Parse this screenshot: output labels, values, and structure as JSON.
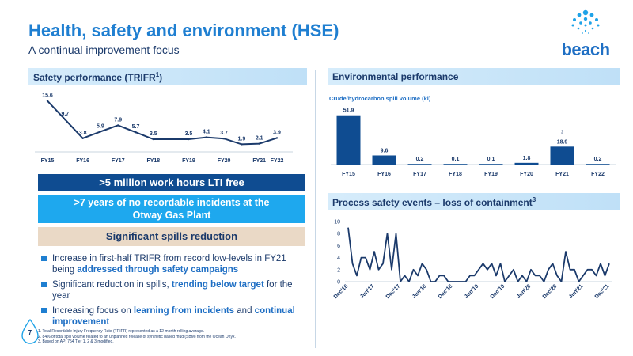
{
  "header": {
    "title": "Health, safety and environment (HSE)",
    "subtitle": "A continual improvement focus",
    "logo_text": "beach"
  },
  "page_number": "7",
  "sections": {
    "safety": "Safety performance (TRIFR",
    "safety_sup": "1",
    "safety_close": ")",
    "environmental": "Environmental performance",
    "process": "Process safety events – loss of containment",
    "process_sup": "3"
  },
  "banners": {
    "lti": ">5 million work hours LTI free",
    "otway_line1": ">7 years of no recordable incidents at the",
    "otway_line2": "Otway Gas Plant",
    "spills": "Significant spills reduction"
  },
  "bullets": [
    {
      "pre": "Increase in first-half TRIFR from record low-levels in FY21 being ",
      "bold": "addressed through safety campaigns",
      "mid": "",
      "bold2": "",
      "post": ""
    },
    {
      "pre": "Significant reduction in spills, ",
      "bold": "trending below target",
      "mid": " for the year",
      "bold2": "",
      "post": ""
    },
    {
      "pre": "Increasing focus on ",
      "bold": "learning from incidents",
      "mid": " and ",
      "bold2": "continual improvement",
      "post": ""
    }
  ],
  "footnotes": [
    "1. Total Recordable Injury Frequency Rate (TRIFR) represented as a 12-month rolling average.",
    "2. 84% of total spill volume related to an unplanned release of synthetic based mud (SBM) from the Ocean Onyx.",
    "3. Based on API 754 Tier 1, 2 & 3 modified."
  ],
  "colors": {
    "title": "#1f7fd1",
    "navy": "#1b3a6b",
    "bar": "#0f4c91",
    "lti_banner": "#0f4c91",
    "otway_banner": "#1ea8ee",
    "spill_banner": "#ead9c6"
  },
  "chart_data": [
    {
      "type": "line",
      "id": "trifr",
      "title": "Safety performance (TRIFR1)",
      "x": [
        "FY15",
        "",
        "FY16",
        "",
        "FY17",
        "",
        "FY18",
        "",
        "FY19",
        "",
        "FY20",
        "",
        "FY21",
        "FY22"
      ],
      "x_ticks": [
        "FY15",
        "FY16",
        "FY17",
        "FY18",
        "FY19",
        "FY20",
        "FY21",
        "FY22"
      ],
      "series": [
        {
          "values": [
            15.6,
            9.7,
            3.8,
            5.9,
            7.9,
            5.7,
            3.5,
            null,
            3.5,
            4.1,
            3.7,
            1.9,
            2.1,
            3.9
          ]
        }
      ],
      "labels": [
        "15.6",
        "9.7",
        "3.8",
        "5.9",
        "7.9",
        "5.7",
        "3.5",
        "",
        "3.5",
        "4.1",
        "3.7",
        "1.9",
        "2.1",
        "3.9"
      ],
      "ylim": [
        0,
        16
      ]
    },
    {
      "type": "bar",
      "id": "spills",
      "ylabel": "Crude/hydrocarbon spill volume (kl)",
      "categories": [
        "FY15",
        "FY16",
        "FY17",
        "FY18",
        "FY19",
        "FY20",
        "FY21",
        "FY22"
      ],
      "values": [
        51.9,
        9.6,
        0.2,
        0.1,
        0.1,
        1.8,
        18.9,
        0.2
      ],
      "annotation": {
        "category": "FY21",
        "text": "2"
      },
      "ylim": [
        0,
        55
      ]
    },
    {
      "type": "line",
      "id": "pse",
      "title": "Process safety events – loss of containment3",
      "x_ticks": [
        "Dec'16",
        "Jun'17",
        "Dec'17",
        "Jun'18",
        "Dec'18",
        "Jun'19",
        "Dec'19",
        "Jun'20",
        "Dec'20",
        "Jun'21",
        "Dec'21"
      ],
      "y_ticks": [
        0,
        2,
        4,
        6,
        8,
        10
      ],
      "ylim": [
        0,
        10
      ],
      "series": [
        {
          "values": [
            9,
            3,
            1,
            4,
            4,
            2,
            5,
            2,
            3,
            8,
            2,
            8,
            0,
            1,
            0,
            2,
            1,
            3,
            2,
            0,
            0,
            1,
            1,
            0,
            0,
            0,
            0,
            0,
            1,
            1,
            2,
            3,
            2,
            3,
            1,
            3,
            0,
            1,
            2,
            0,
            1,
            0,
            2,
            1,
            1,
            0,
            2,
            3,
            1,
            0,
            5,
            2,
            2,
            0,
            1,
            2,
            2,
            1,
            3,
            1,
            3
          ]
        }
      ]
    }
  ]
}
